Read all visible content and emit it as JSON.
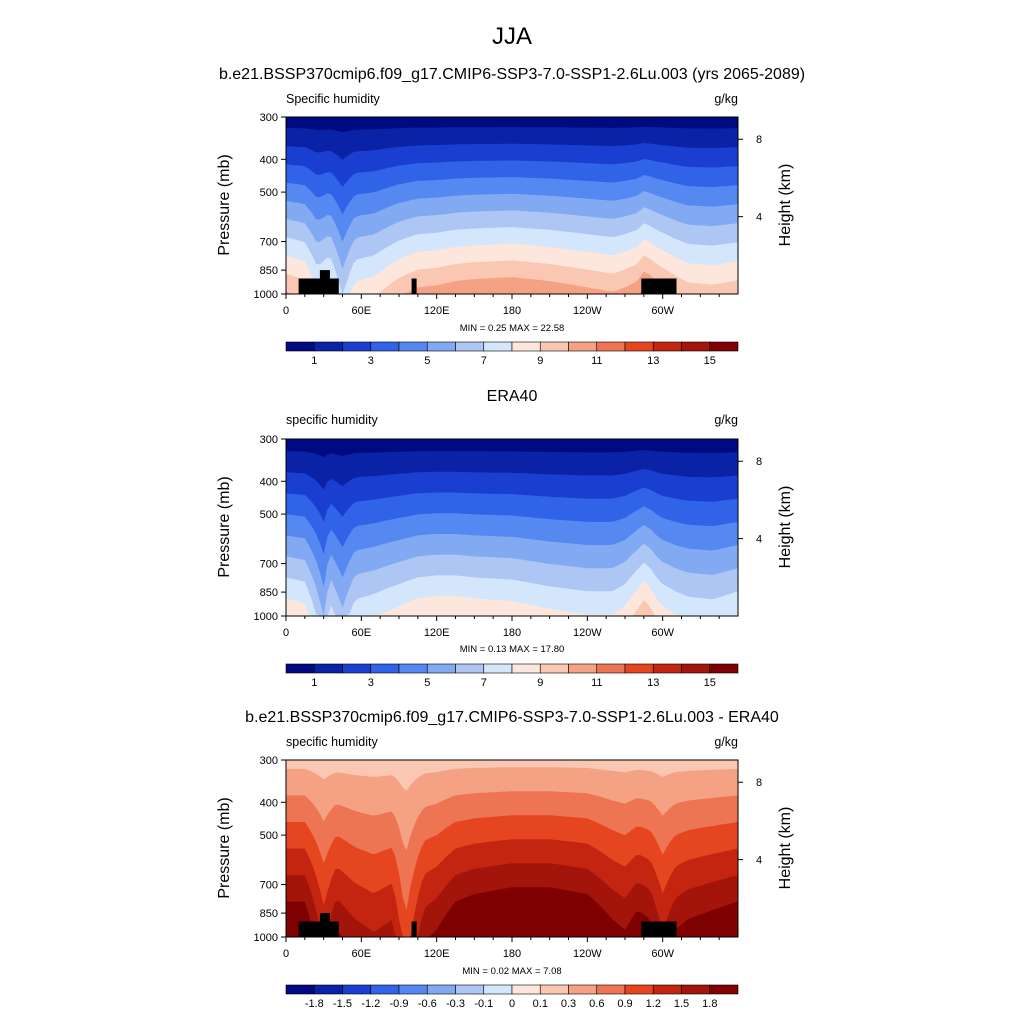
{
  "figure": {
    "title": "JJA",
    "panel_titles": [
      "b.e21.BSSP370cmip6.f09_g17.CMIP6-SSP3-7.0-SSP1-2.6Lu.003 (yrs 2065-2089)",
      "ERA40",
      "b.e21.BSSP370cmip6.f09_g17.CMIP6-SSP3-7.0-SSP1-2.6Lu.003 - ERA40"
    ]
  },
  "colors": {
    "full_field_palette": [
      "#000a80",
      "#0a22a6",
      "#1a3fd0",
      "#3163e8",
      "#5588f0",
      "#82aaf2",
      "#aec6f4",
      "#d4e6fb",
      "#fde6dc",
      "#f9c7b2",
      "#f4a283",
      "#ee7554",
      "#e6461f",
      "#c32510",
      "#a3150a",
      "#7f0000"
    ],
    "diff_palette": [
      "#000a80",
      "#0a22a6",
      "#1a3fd0",
      "#3163e8",
      "#5588f0",
      "#82aaf2",
      "#aec6f4",
      "#d4e6fb",
      "#fde6dc",
      "#f9c7b2",
      "#f4a283",
      "#ee7554",
      "#e6461f",
      "#c32510",
      "#a3150a",
      "#7f0000"
    ],
    "terrain": "#000000"
  },
  "chart_data": [
    {
      "type": "heatmap",
      "title": "b.e21.BSSP370cmip6.f09_g17.CMIP6-SSP3-7.0-SSP1-2.6Lu.003 (yrs 2065-2089)",
      "variable_label": "Specific humidity",
      "units": "g/kg",
      "ylabel": "Pressure (mb)",
      "y2label": "Height (km)",
      "x_ticks": [
        "0",
        "60E",
        "120E",
        "180",
        "120W",
        "60W"
      ],
      "x_tick_values": [
        0,
        60,
        120,
        180,
        240,
        300
      ],
      "xlim": [
        0,
        360
      ],
      "y_ticks": [
        "300",
        "400",
        "500",
        "700",
        "850",
        "1000"
      ],
      "y_tick_values": [
        300,
        400,
        500,
        700,
        850,
        1000
      ],
      "ylim": [
        1000,
        300
      ],
      "y2_ticks": [
        "8",
        "4"
      ],
      "y2_tick_values": [
        8,
        4
      ],
      "stats": {
        "min_label": "MIN =",
        "min": "0.25",
        "max_label": "MAX =",
        "max": "22.58"
      },
      "colorbar": {
        "levels": [
          0.5,
          1,
          2,
          3,
          4,
          5,
          6,
          7,
          8,
          9,
          10,
          11,
          12,
          13,
          14,
          15
        ],
        "labels": [
          "1",
          "3",
          "5",
          "7",
          "9",
          "11",
          "13",
          "15"
        ]
      },
      "profile_anchor_lon": [
        0,
        15,
        25,
        35,
        45,
        55,
        70,
        90,
        105,
        120,
        135,
        150,
        180,
        210,
        240,
        260,
        270,
        280,
        285,
        290,
        295,
        300,
        310,
        320,
        340,
        360
      ],
      "profile_anchor_value": [
        7.5,
        7.2,
        6.0,
        6.5,
        5.0,
        6.3,
        6.5,
        7.3,
        7.7,
        7.8,
        8.0,
        8.1,
        8.2,
        8.0,
        7.7,
        7.5,
        7.7,
        8.0,
        8.5,
        8.3,
        8.0,
        7.8,
        7.4,
        7.1,
        7.0,
        7.2
      ],
      "terrain_blocks": [
        {
          "lon": [
            10,
            42
          ],
          "p": [
            900,
            1000
          ]
        },
        {
          "lon": [
            27,
            35
          ],
          "p": [
            850,
            1000
          ]
        },
        {
          "lon": [
            100,
            104
          ],
          "p": [
            900,
            1000
          ]
        },
        {
          "lon": [
            283,
            311
          ],
          "p": [
            900,
            1000
          ]
        }
      ]
    },
    {
      "type": "heatmap",
      "title": "ERA40",
      "variable_label": "specific humidity",
      "units": "g/kg",
      "ylabel": "Pressure (mb)",
      "y2label": "Height (km)",
      "x_ticks": [
        "0",
        "60E",
        "120E",
        "180",
        "120W",
        "60W"
      ],
      "x_tick_values": [
        0,
        60,
        120,
        180,
        240,
        300
      ],
      "xlim": [
        0,
        360
      ],
      "y_ticks": [
        "300",
        "400",
        "500",
        "700",
        "850",
        "1000"
      ],
      "y_tick_values": [
        300,
        400,
        500,
        700,
        850,
        1000
      ],
      "ylim": [
        1000,
        300
      ],
      "y2_ticks": [
        "8",
        "4"
      ],
      "y2_tick_values": [
        8,
        4
      ],
      "stats": {
        "min_label": "MIN =",
        "min": "0.13",
        "max_label": "MAX =",
        "max": "17.80"
      },
      "colorbar": {
        "levels": [
          0.5,
          1,
          2,
          3,
          4,
          5,
          6,
          7,
          8,
          9,
          10,
          11,
          12,
          13,
          14,
          15
        ],
        "labels": [
          "1",
          "3",
          "5",
          "7",
          "9",
          "11",
          "13",
          "15"
        ]
      },
      "profile_anchor_lon": [
        0,
        15,
        25,
        30,
        35,
        45,
        55,
        70,
        90,
        105,
        120,
        135,
        150,
        180,
        210,
        240,
        260,
        270,
        280,
        285,
        290,
        295,
        300,
        310,
        320,
        340,
        360
      ],
      "profile_anchor_value": [
        6.5,
        6.3,
        5.0,
        4.2,
        5.5,
        4.5,
        5.6,
        5.8,
        6.2,
        6.5,
        6.6,
        6.6,
        6.5,
        6.4,
        6.1,
        5.9,
        5.9,
        6.2,
        6.9,
        7.3,
        7.0,
        6.5,
        6.2,
        5.9,
        5.7,
        5.6,
        5.9
      ],
      "terrain_blocks": []
    },
    {
      "type": "heatmap",
      "title": "b.e21.BSSP370cmip6.f09_g17.CMIP6-SSP3-7.0-SSP1-2.6Lu.003 - ERA40",
      "variable_label": "specific humidity",
      "units": "g/kg",
      "ylabel": "Pressure (mb)",
      "y2label": "Height (km)",
      "x_ticks": [
        "0",
        "60E",
        "120E",
        "180",
        "120W",
        "60W"
      ],
      "x_tick_values": [
        0,
        60,
        120,
        180,
        240,
        300
      ],
      "xlim": [
        0,
        360
      ],
      "y_ticks": [
        "300",
        "400",
        "500",
        "700",
        "850",
        "1000"
      ],
      "y_tick_values": [
        300,
        400,
        500,
        700,
        850,
        1000
      ],
      "ylim": [
        1000,
        300
      ],
      "y2_ticks": [
        "8",
        "4"
      ],
      "y2_tick_values": [
        8,
        4
      ],
      "stats": {
        "min_label": "MIN =",
        "min": "0.02",
        "max_label": "MAX =",
        "max": "7.08"
      },
      "colorbar": {
        "levels": [
          -1.8,
          -1.5,
          -1.2,
          -0.9,
          -0.6,
          -0.3,
          -0.1,
          0,
          0.1,
          0.3,
          0.6,
          0.9,
          1.2,
          1.5,
          1.8
        ],
        "labels": [
          "-1.8",
          "-1.5",
          "-1.2",
          "-0.9",
          "-0.6",
          "-0.3",
          "-0.1",
          "0",
          "0.1",
          "0.3",
          "0.6",
          "0.9",
          "1.2",
          "1.5",
          "1.8"
        ]
      },
      "diff_anchor_lon": [
        0,
        15,
        30,
        40,
        55,
        70,
        85,
        95,
        110,
        120,
        135,
        150,
        180,
        210,
        240,
        260,
        270,
        280,
        290,
        300,
        310,
        320,
        340,
        360
      ],
      "diff_anchor_value": [
        1.5,
        1.5,
        0.8,
        1.2,
        1.0,
        0.9,
        1.0,
        0.4,
        1.1,
        1.2,
        1.5,
        1.6,
        1.7,
        1.7,
        1.6,
        1.3,
        1.2,
        1.4,
        1.3,
        0.9,
        1.2,
        1.3,
        1.4,
        1.5
      ],
      "terrain_blocks": [
        {
          "lon": [
            10,
            42
          ],
          "p": [
            900,
            1000
          ]
        },
        {
          "lon": [
            27,
            35
          ],
          "p": [
            850,
            1000
          ]
        },
        {
          "lon": [
            100,
            104
          ],
          "p": [
            900,
            1000
          ]
        },
        {
          "lon": [
            283,
            311
          ],
          "p": [
            900,
            1000
          ]
        }
      ]
    }
  ]
}
